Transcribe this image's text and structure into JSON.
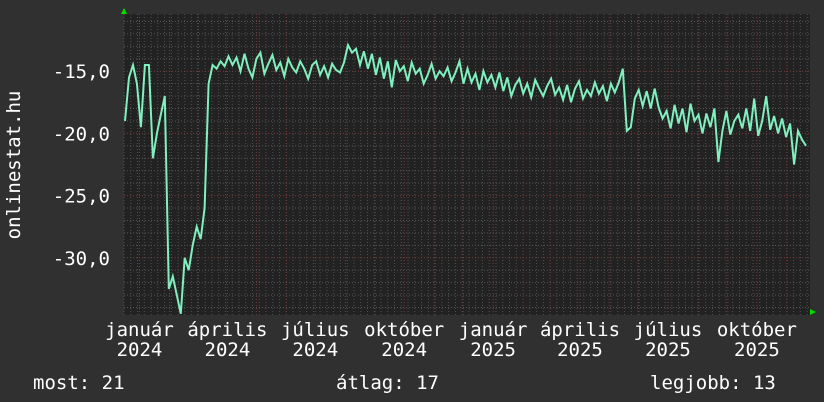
{
  "chart_data": {
    "type": "line",
    "title": "",
    "ylabel": "onlinestat.hu",
    "xlabel": "",
    "ylim": [
      -34.6,
      -10.4
    ],
    "yticks": [
      -15,
      -20,
      -25,
      -30
    ],
    "ytick_labels": [
      "-15,0",
      "-20,0",
      "-25,0",
      "-30,0"
    ],
    "xlim": [
      "2023-12-16",
      "2025-11-25"
    ],
    "xtick_dates": [
      "2024-01-01",
      "2024-04-01",
      "2024-07-01",
      "2024-10-01",
      "2025-01-01",
      "2025-04-01",
      "2025-07-01",
      "2025-10-01"
    ],
    "xtick_labels": [
      "január 2024",
      "április 2024",
      "július 2024",
      "október 2024",
      "január 2025",
      "április 2025",
      "július 2025",
      "október 2025"
    ],
    "grid": true,
    "line_color": "#7ff0be",
    "values": [
      -19,
      -15.5,
      -14.5,
      -16,
      -19.5,
      -14.5,
      -14.5,
      -22,
      -20,
      -18.5,
      -17,
      -32.5,
      -31.5,
      -33,
      -34.5,
      -30,
      -31,
      -29,
      -27.5,
      -28.5,
      -26,
      -16,
      -14.5,
      -14.8,
      -14.2,
      -14.6,
      -13.8,
      -14.5,
      -13.9,
      -15,
      -13.6,
      -14.8,
      -15.5,
      -14,
      -13.5,
      -15.2,
      -14.4,
      -13.7,
      -14.9,
      -14.3,
      -15.4,
      -14,
      -14.7,
      -15.1,
      -14.2,
      -14.8,
      -15.6,
      -14.5,
      -14.2,
      -15.3,
      -14.6,
      -15.5,
      -14.4,
      -14.9,
      -15.1,
      -14.3,
      -12.9,
      -13.5,
      -13.2,
      -14.5,
      -13.4,
      -14.8,
      -13.6,
      -15.3,
      -13.9,
      -15.6,
      -14.2,
      -16.3,
      -14.1,
      -15.0,
      -14.6,
      -15.8,
      -14.3,
      -15.2,
      -14.8,
      -16.0,
      -15.3,
      -14.4,
      -15.6,
      -15.0,
      -15.4,
      -14.7,
      -15.8,
      -15.1,
      -14.2,
      -16.0,
      -14.8,
      -15.9,
      -15.2,
      -16.5,
      -15.0,
      -15.9,
      -15.3,
      -16.3,
      -15.1,
      -16.6,
      -15.5,
      -17.0,
      -16.1,
      -15.6,
      -16.8,
      -16.0,
      -17.1,
      -15.7,
      -16.4,
      -17.0,
      -16.2,
      -15.6,
      -16.9,
      -16.3,
      -17.3,
      -16.1,
      -17.5,
      -16.4,
      -15.8,
      -17.2,
      -16.5,
      -17.0,
      -15.9,
      -16.8,
      -16.2,
      -17.4,
      -16.0,
      -16.7,
      -15.9,
      -14.8,
      -19.8,
      -19.5,
      -17.2,
      -16.5,
      -17.8,
      -16.6,
      -18.0,
      -16.4,
      -17.9,
      -18.8,
      -18.2,
      -19.6,
      -17.7,
      -19.2,
      -18.0,
      -19.9,
      -17.6,
      -19.0,
      -18.5,
      -20.0,
      -18.4,
      -19.5,
      -18.0,
      -22.3,
      -19.8,
      -18.2,
      -20.1,
      -19.0,
      -18.5,
      -19.6,
      -18.0,
      -19.8,
      -17.2,
      -20.2,
      -19.0,
      -17.0,
      -19.7,
      -18.6,
      -20.0,
      -18.8,
      -20.3,
      -19.2,
      -22.5,
      -19.8,
      -20.5,
      -21
    ]
  },
  "legend": {
    "current": "most: 21",
    "average": "átlag: 17",
    "best": "legjobb: 13"
  }
}
